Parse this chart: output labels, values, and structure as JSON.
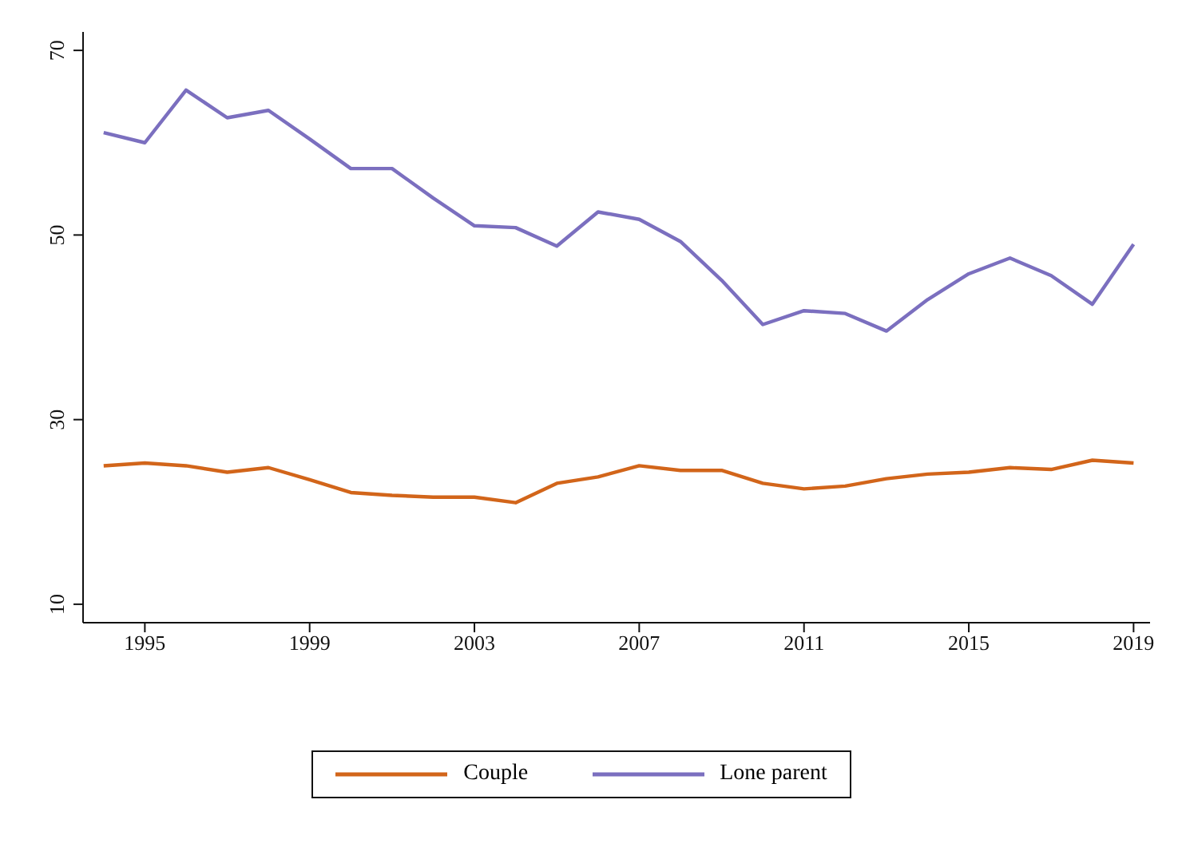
{
  "chart_data": {
    "type": "line",
    "x": [
      1994,
      1995,
      1996,
      1997,
      1998,
      1999,
      2000,
      2001,
      2002,
      2003,
      2004,
      2005,
      2006,
      2007,
      2008,
      2009,
      2010,
      2011,
      2012,
      2013,
      2014,
      2015,
      2016,
      2017,
      2018,
      2019
    ],
    "series": [
      {
        "name": "Couple",
        "color": "#d2651a",
        "values": [
          25.0,
          25.3,
          25.0,
          24.3,
          24.8,
          23.5,
          22.1,
          21.8,
          21.6,
          21.6,
          21.0,
          23.1,
          23.8,
          25.0,
          24.5,
          24.5,
          23.1,
          22.5,
          22.8,
          23.6,
          24.1,
          24.3,
          24.8,
          24.6,
          25.6,
          25.3
        ]
      },
      {
        "name": "Lone parent",
        "color": "#7b6fbf",
        "values": [
          61.1,
          60.0,
          65.7,
          62.7,
          63.5,
          60.4,
          57.2,
          57.2,
          54.0,
          51.0,
          50.8,
          48.8,
          52.5,
          51.7,
          49.3,
          45.1,
          40.3,
          41.8,
          41.5,
          39.6,
          43.0,
          45.8,
          47.5,
          45.6,
          42.5,
          49.0
        ]
      }
    ],
    "xlim": [
      1993.5,
      2019.4
    ],
    "xticks": [
      1995,
      1999,
      2003,
      2007,
      2011,
      2015,
      2019
    ],
    "ylim": [
      8,
      72
    ],
    "yticks": [
      10,
      30,
      50,
      70
    ],
    "grid": false,
    "legend": "bottom",
    "marker": "none",
    "line_style": "solid"
  }
}
